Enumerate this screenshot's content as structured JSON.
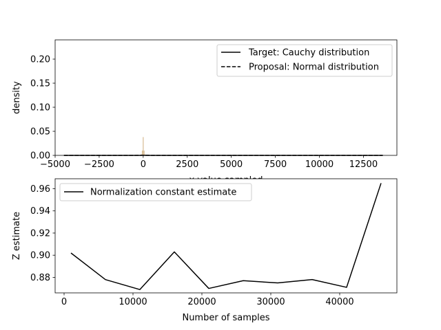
{
  "chart_data": [
    {
      "type": "line",
      "xlabel": "x value sampled",
      "ylabel": "density",
      "xlim": [
        -5000,
        14400
      ],
      "ylim": [
        0,
        0.24
      ],
      "xticks": [
        -5000,
        -2500,
        0,
        2500,
        5000,
        7500,
        10000,
        12500
      ],
      "xtick_labels": [
        "−5000",
        "−2500",
        "0",
        "2500",
        "5000",
        "7500",
        "10000",
        "12500"
      ],
      "yticks": [
        0,
        0.05,
        0.1,
        0.15,
        0.2
      ],
      "ytick_labels": [
        "0.00",
        "0.05",
        "0.10",
        "0.15",
        "0.20"
      ],
      "legend_position": "top-right",
      "grid": false,
      "series": [
        {
          "name": "Target: Cauchy distribution",
          "style": "solid",
          "color": "#000000",
          "x": [
            -4500,
            -1000,
            -100,
            0,
            100,
            1000,
            5000,
            13600
          ],
          "y": [
            0,
            0,
            3e-05,
            0.000318,
            3e-05,
            0,
            0,
            0
          ]
        },
        {
          "name": "Proposal: Normal distribution",
          "style": "dashed",
          "color": "#000000",
          "x": [
            -4500,
            -500,
            0,
            500,
            13600
          ],
          "y": [
            0,
            0,
            0.0004,
            0,
            0
          ]
        }
      ],
      "histogram": {
        "color": "#c8a46e",
        "x": [
          -100,
          -50,
          0,
          50,
          100
        ],
        "y": [
          0.002,
          0.01,
          0.038,
          0.01,
          0.002
        ]
      }
    },
    {
      "type": "line",
      "xlabel": "Number of samples",
      "ylabel": "Z estimate",
      "xlim": [
        -1300,
        48300
      ],
      "ylim": [
        0.866,
        0.969
      ],
      "xticks": [
        0,
        10000,
        20000,
        30000,
        40000
      ],
      "xtick_labels": [
        "0",
        "10000",
        "20000",
        "30000",
        "40000"
      ],
      "yticks": [
        0.88,
        0.9,
        0.92,
        0.94,
        0.96
      ],
      "ytick_labels": [
        "0.88",
        "0.90",
        "0.92",
        "0.94",
        "0.96"
      ],
      "legend_position": "top-left",
      "grid": false,
      "series": [
        {
          "name": "Normalization constant estimate",
          "style": "solid",
          "color": "#000000",
          "x": [
            1000,
            6000,
            11000,
            16000,
            21000,
            26000,
            31000,
            36000,
            41000,
            46000
          ],
          "y": [
            0.902,
            0.878,
            0.869,
            0.903,
            0.87,
            0.877,
            0.875,
            0.878,
            0.871,
            0.965
          ]
        }
      ]
    }
  ]
}
